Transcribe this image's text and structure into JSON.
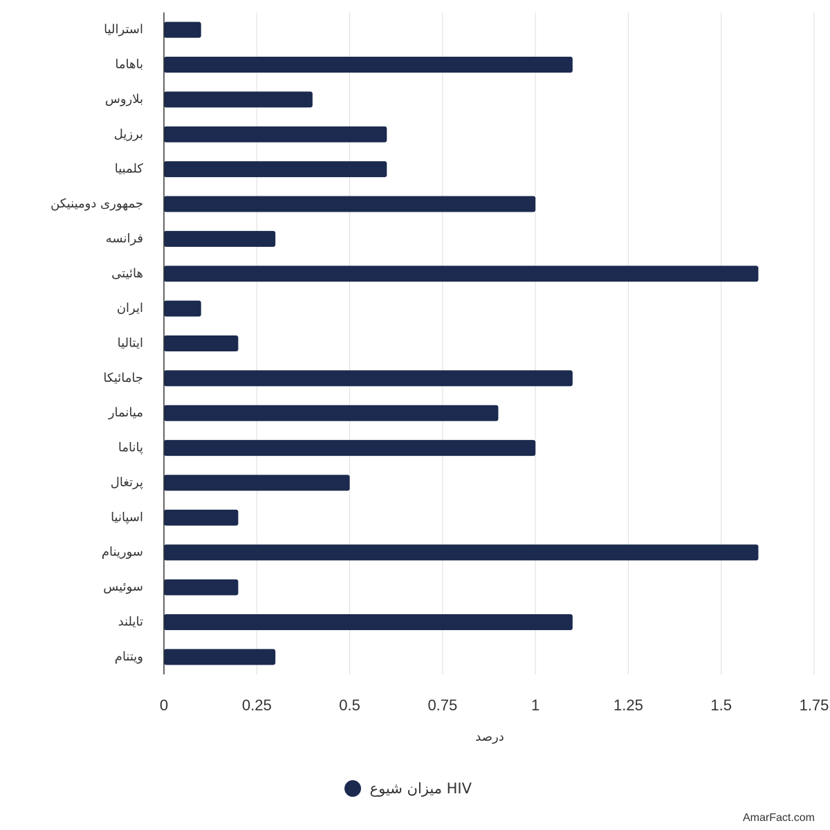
{
  "chart_data": {
    "type": "barh",
    "categories": [
      "استرالیا",
      "باهاما",
      "بلاروس",
      "برزیل",
      "کلمبیا",
      "جمهوری دومینیکن",
      "فرانسه",
      "هائیتی",
      "ایران",
      "ایتالیا",
      "جامائیکا",
      "میانمار",
      "پاناما",
      "پرتغال",
      "اسپانیا",
      "سورینام",
      "سوئیس",
      "تایلند",
      "ویتنام"
    ],
    "series": [
      {
        "name": "میزان شیوع HIV",
        "color": "#1b2a4e",
        "values": [
          0.1,
          1.1,
          0.4,
          0.6,
          0.6,
          1.0,
          0.3,
          1.6,
          0.1,
          0.2,
          1.1,
          0.9,
          1.0,
          0.5,
          0.2,
          1.6,
          0.2,
          1.1,
          0.3
        ]
      }
    ],
    "x_label": "درصد",
    "xlim": [
      0,
      1.75
    ],
    "xticks": [
      0,
      0.25,
      0.5,
      0.75,
      1,
      1.25,
      1.5,
      1.75
    ],
    "grid": true,
    "legend": "bottom"
  },
  "watermark": "AmarFact.com"
}
